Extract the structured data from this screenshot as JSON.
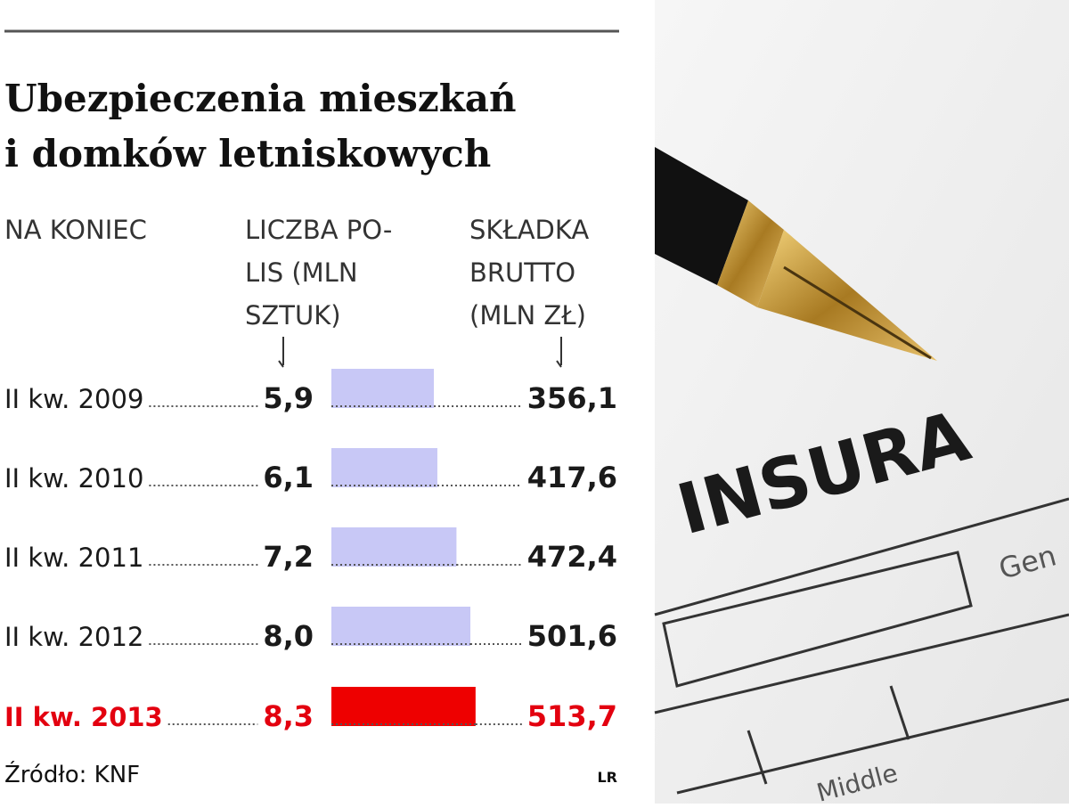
{
  "chart_data": {
    "type": "bar",
    "title": [
      "Ubezpieczenia mieszkań",
      "i domków letniskowych"
    ],
    "column_headers": [
      [
        "NA KONIEC"
      ],
      [
        "LICZBA PO-",
        "LIS (MLN",
        "SZTUK)"
      ],
      [
        "SKŁADKA",
        "BRUTTO",
        "(MLN ZŁ)"
      ]
    ],
    "categories": [
      "II kw. 2009",
      "II kw. 2010",
      "II kw. 2011",
      "II kw. 2012",
      "II kw. 2013"
    ],
    "row_colors": [
      "#1a1a1a",
      "#1a1a1a",
      "#1a1a1a",
      "#1a1a1a",
      "#e3000f"
    ],
    "series": [
      {
        "name": "LICZBA POLIS (MLN SZTUK)",
        "values": [
          5.9,
          6.1,
          7.2,
          8.0,
          8.3
        ],
        "value_labels": [
          "5,9",
          "6,1",
          "7,2",
          "8,0",
          "8,3"
        ],
        "colors": [
          "#c8c8f6",
          "#c8c8f6",
          "#c8c8f6",
          "#c8c8f6",
          "#ee0000"
        ]
      },
      {
        "name": "SKŁADKA BRUTTO (MLN ZŁ)",
        "values": [
          356.1,
          417.6,
          472.4,
          501.6,
          513.7
        ],
        "value_labels": [
          "356,1",
          "417,6",
          "472,4",
          "501,6",
          "513,7"
        ]
      }
    ],
    "source": "Źródło: KNF",
    "credit": "LR"
  },
  "photo": {
    "texts": [
      "INSURA",
      "Gen",
      "Middle"
    ]
  }
}
